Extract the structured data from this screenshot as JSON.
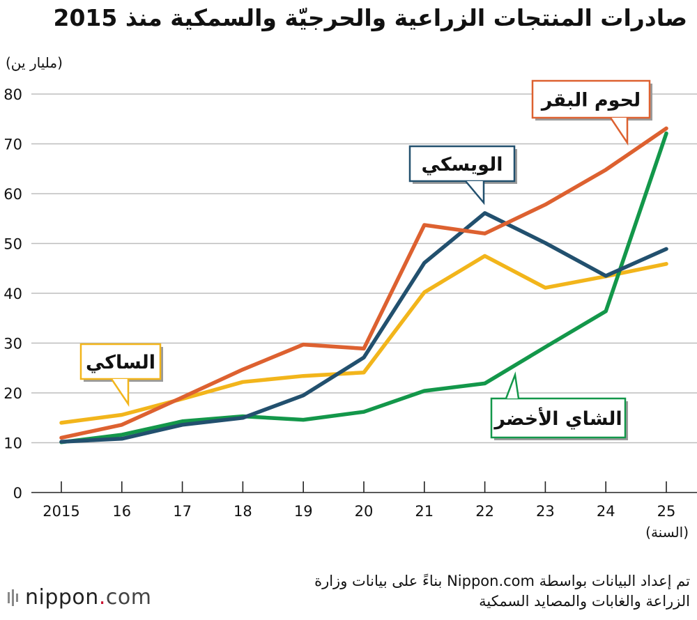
{
  "title": "صادرات المنتجات الزراعية والحرجيّة والسمكية منذ 2015",
  "unit_label": "(مليار ين)",
  "source": "تم إعداد البيانات بواسطة Nippon.com بناءً على بيانات وزارة الزراعة والغابات والمصايد السمكية",
  "logo": {
    "text_main": "nippon",
    "text_dot": ".",
    "text_tld": "com"
  },
  "chart_data": {
    "type": "line",
    "title": "صادرات المنتجات الزراعية والحرجيّة والسمكية منذ 2015",
    "ylabel": "(مليار ين)",
    "xlabel": "(السنة)",
    "x": [
      "2015",
      "16",
      "17",
      "18",
      "19",
      "20",
      "21",
      "22",
      "23",
      "24",
      "25"
    ],
    "ylim": [
      0,
      80
    ],
    "yticks": [
      0,
      10,
      20,
      30,
      40,
      50,
      60,
      70,
      80
    ],
    "grid": true,
    "series": [
      {
        "name": "الساكي",
        "color": "#f2b51b",
        "values": [
          14.0,
          15.6,
          18.8,
          22.2,
          23.4,
          24.1,
          40.2,
          47.5,
          41.1,
          43.4,
          45.9
        ]
      },
      {
        "name": "الشاي الأخضر",
        "color": "#13974a",
        "values": [
          10.1,
          11.6,
          14.3,
          15.3,
          14.6,
          16.2,
          20.4,
          21.9,
          29.2,
          36.4,
          72.1
        ]
      },
      {
        "name": "الويسكي",
        "color": "#22506e",
        "values": [
          10.2,
          10.8,
          13.6,
          15.0,
          19.5,
          27.1,
          46.1,
          56.1,
          50.1,
          43.5,
          48.9
        ]
      },
      {
        "name": "لحوم البقر",
        "color": "#dd6130",
        "values": [
          11.0,
          13.6,
          19.1,
          24.7,
          29.7,
          28.9,
          53.7,
          52.0,
          57.8,
          64.8,
          73.1
        ]
      }
    ]
  }
}
